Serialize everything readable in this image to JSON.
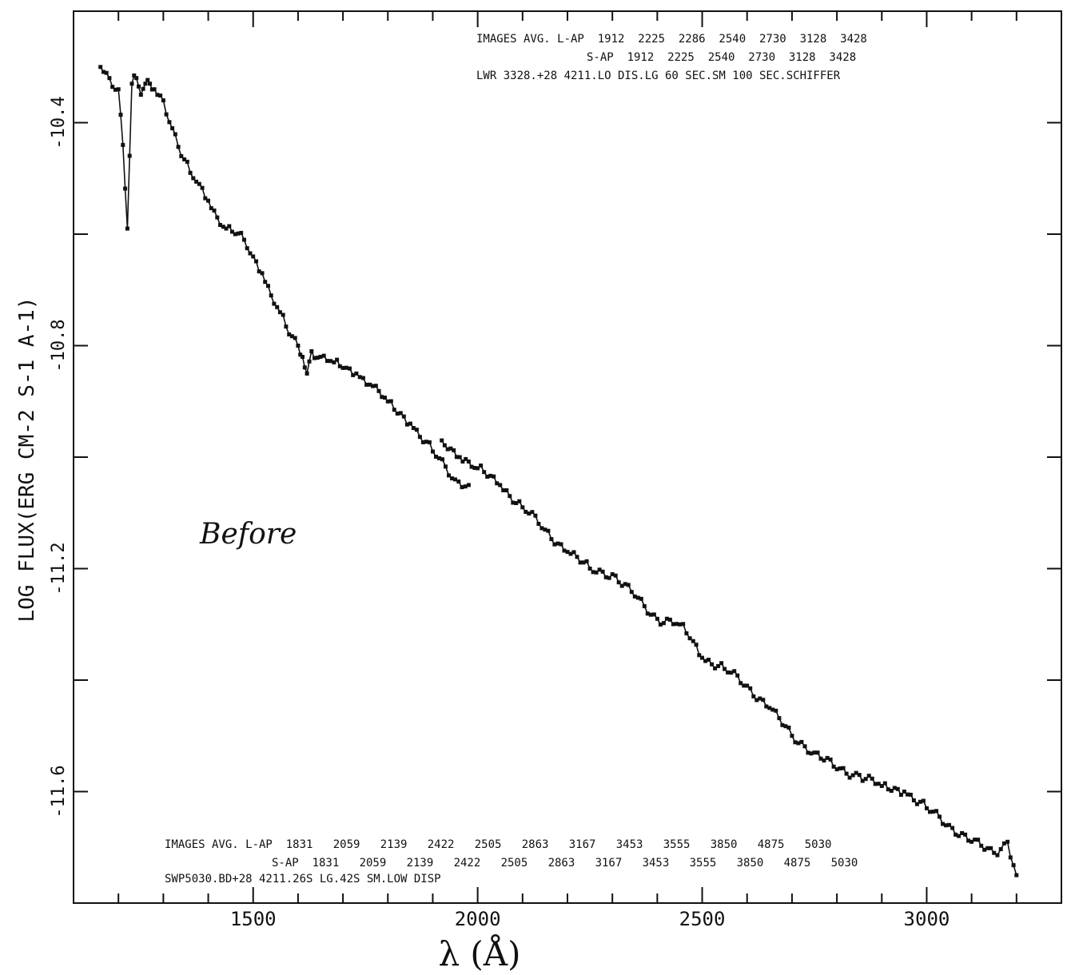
{
  "chart_data": {
    "type": "line",
    "xlabel": "λ (Å)",
    "ylabel": "LOG FLUX(ERG CM-2 S-1 A-1)",
    "xlim": [
      1100,
      3300
    ],
    "ylim": [
      -11.8,
      -10.2
    ],
    "x_ticklabels": [
      "1500",
      "2000",
      "2500",
      "3000"
    ],
    "y_ticklabels": [
      "-10.4",
      "-10.8",
      "-11.2",
      "-11.6"
    ],
    "grid": false,
    "annotation": "Before",
    "header_lines": [
      "IMAGES AVG. L-AP  1912  2225  2286  2540  2730  3128  3428",
      "S-AP  1912  2225  2540  2730  3128  3428",
      "LWR 3328.+28 4211.LO DIS.LG 60 SEC.SM 100 SEC.SCHIFFER"
    ],
    "footer_lines": [
      "IMAGES AVG. L-AP  1831   2059   2139   2422   2505   2863   3167   3453   3555   3850   4875   5030",
      "S-AP  1831   2059   2139   2422   2505   2863   3167   3453   3555   3850   4875   5030",
      "SWP5030.BD+28 4211.26S LG.42S SM.LOW DISP"
    ],
    "series": [
      {
        "x": [
          1160,
          1180,
          1200,
          1210,
          1220,
          1230,
          1240,
          1250,
          1260,
          1270,
          1280,
          1300,
          1320,
          1340,
          1360,
          1380,
          1400,
          1420,
          1440,
          1460,
          1480,
          1500,
          1520,
          1540,
          1560,
          1580,
          1600,
          1610,
          1620,
          1630,
          1650,
          1680,
          1700,
          1730,
          1760,
          1800,
          1850,
          1900,
          1950,
          1980
        ],
        "values": [
          -10.3,
          -10.32,
          -10.34,
          -10.44,
          -10.59,
          -10.33,
          -10.32,
          -10.35,
          -10.33,
          -10.33,
          -10.34,
          -10.36,
          -10.41,
          -10.46,
          -10.49,
          -10.51,
          -10.54,
          -10.57,
          -10.59,
          -10.6,
          -10.61,
          -10.64,
          -10.67,
          -10.71,
          -10.74,
          -10.78,
          -10.8,
          -10.82,
          -10.85,
          -10.81,
          -10.82,
          -10.83,
          -10.84,
          -10.85,
          -10.87,
          -10.9,
          -10.94,
          -10.99,
          -11.04,
          -11.05
        ]
      },
      {
        "x": [
          1920,
          1960,
          2000,
          2050,
          2100,
          2150,
          2200,
          2250,
          2300,
          2350,
          2400,
          2450,
          2480,
          2500,
          2550,
          2600,
          2650,
          2700,
          2750,
          2800,
          2850,
          2900,
          2950,
          3000,
          3050,
          3100,
          3150,
          3180,
          3200
        ],
        "values": [
          -10.97,
          -11.0,
          -11.02,
          -11.05,
          -11.09,
          -11.13,
          -11.17,
          -11.2,
          -11.21,
          -11.25,
          -11.29,
          -11.3,
          -11.33,
          -11.36,
          -11.38,
          -11.41,
          -11.45,
          -11.5,
          -11.53,
          -11.56,
          -11.57,
          -11.59,
          -11.6,
          -11.63,
          -11.66,
          -11.69,
          -11.71,
          -11.69,
          -11.75
        ]
      }
    ]
  }
}
